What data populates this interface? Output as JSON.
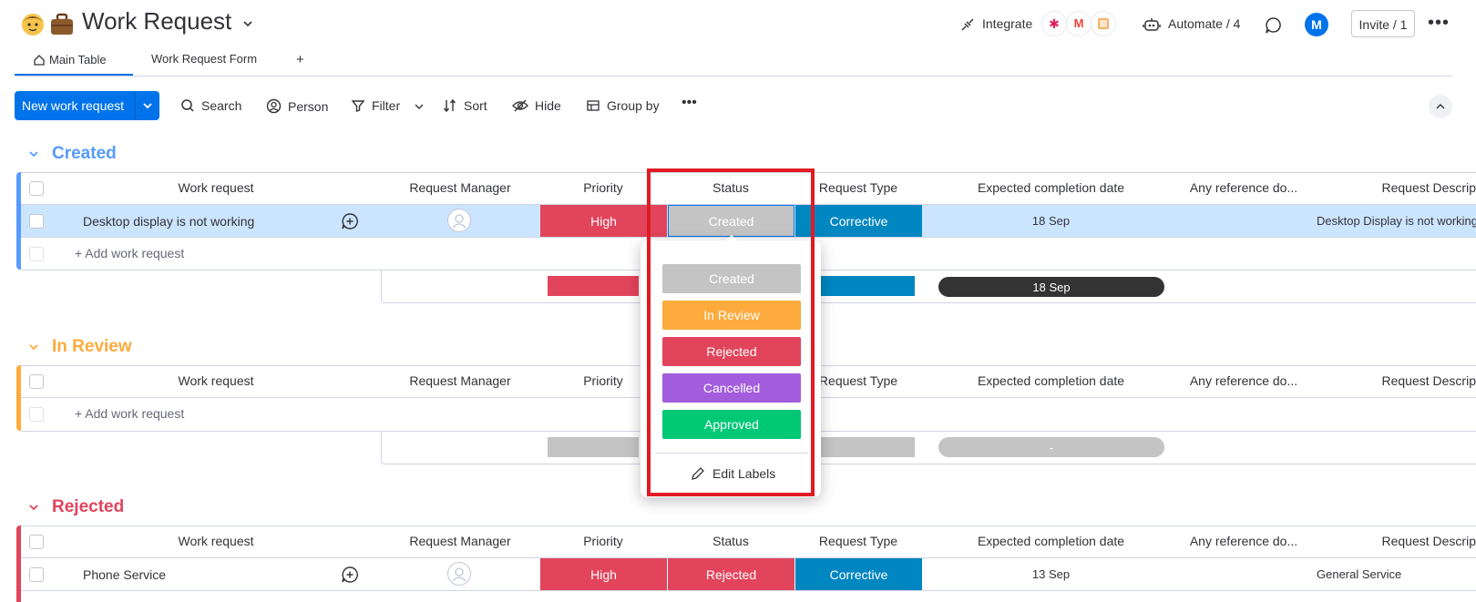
{
  "header": {
    "emoji": "🧑",
    "title": "Work Request",
    "integrate_label": "Integrate",
    "automate_label": "Automate / 4",
    "avatar_initial": "M",
    "invite_label": "Invite / 1"
  },
  "tabs": [
    {
      "label": "Main Table"
    },
    {
      "label": "Work Request Form"
    }
  ],
  "add_tab_label": "+",
  "toolbar": {
    "new_button": "New work request",
    "search": "Search",
    "person": "Person",
    "filter": "Filter",
    "sort": "Sort",
    "hide": "Hide",
    "group_by": "Group by"
  },
  "columns": [
    "Work request",
    "Request Manager",
    "Priority",
    "Status",
    "Request Type",
    "Expected completion date",
    "Any reference do...",
    "Request Descrip"
  ],
  "groups": [
    {
      "title": "Created",
      "color": "#579bfc",
      "rows": [
        {
          "name": "Desktop display is not working",
          "priority": "High",
          "status": "Created",
          "type": "Corrective",
          "date": "18 Sep",
          "description": "Desktop Display is not working"
        }
      ],
      "add_label": "+ Add work request",
      "summary_date": "18 Sep"
    },
    {
      "title": "In Review",
      "color": "#fdab3d",
      "rows": [],
      "add_label": "+ Add work request",
      "summary_date": "-"
    },
    {
      "title": "Rejected",
      "color": "#e2445c",
      "rows": [
        {
          "name": "Phone Service",
          "priority": "High",
          "status": "Rejected",
          "type": "Corrective",
          "date": "13 Sep",
          "description": "General Service"
        }
      ]
    }
  ],
  "status_dropdown": {
    "options": [
      {
        "label": "Created",
        "color": "#c4c4c4"
      },
      {
        "label": "In Review",
        "color": "#fdab3d"
      },
      {
        "label": "Rejected",
        "color": "#e2445c"
      },
      {
        "label": "Cancelled",
        "color": "#a25ddc"
      },
      {
        "label": "Approved",
        "color": "#00c875"
      }
    ],
    "edit_labels": "Edit Labels"
  },
  "colors": {
    "high": "#e2445c",
    "corrective": "#0086c0",
    "created": "#c4c4c4",
    "rejected": "#e2445c",
    "selected_row": "#cce5ff",
    "primary": "#0073ea"
  }
}
